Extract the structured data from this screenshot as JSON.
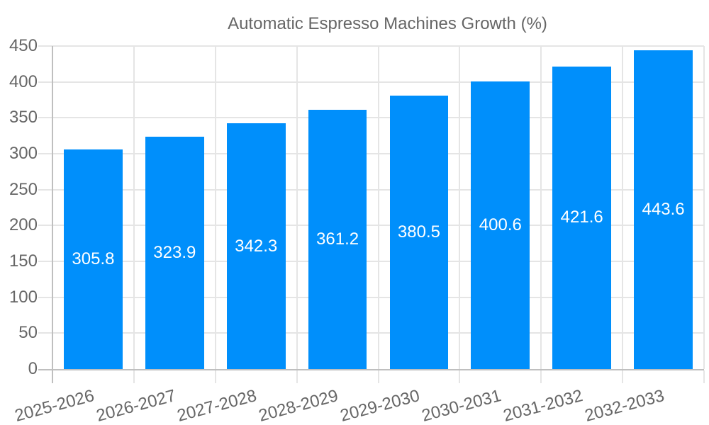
{
  "legend": {
    "label": "Automatic Espresso Machines Growth (%)"
  },
  "chart_data": {
    "type": "bar",
    "title": "Automatic Espresso Machines Growth (%)",
    "categories": [
      "2025-2026",
      "2026-2027",
      "2027-2028",
      "2028-2029",
      "2029-2030",
      "2030-2031",
      "2031-2032",
      "2032-2033"
    ],
    "values": [
      305.8,
      323.9,
      342.3,
      361.2,
      380.5,
      400.6,
      421.6,
      443.6
    ],
    "value_labels": [
      "305.8",
      "323.9",
      "342.3",
      "361.2",
      "380.5",
      "400.6",
      "421.6",
      "443.6"
    ],
    "xlabel": "",
    "ylabel": "",
    "ylim": [
      0,
      450
    ],
    "ytick_step": 50,
    "ytick_labels": [
      "0",
      "50",
      "100",
      "150",
      "200",
      "250",
      "300",
      "350",
      "400",
      "450"
    ],
    "legend_position": "top",
    "grid": "horizontal-and-vertical",
    "colors": {
      "bar": "#008FFB",
      "text": "#666666",
      "grid": "#e5e5e5",
      "axis": "#bfbfbf",
      "value_label": "#ffffff",
      "background": "#ffffff"
    }
  }
}
